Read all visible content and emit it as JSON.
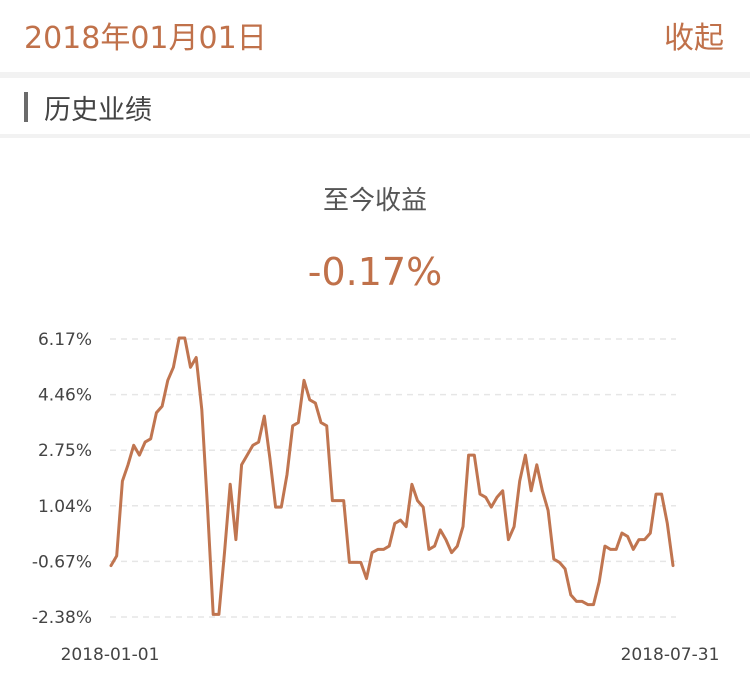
{
  "header": {
    "date": "2018年01月01日",
    "collapse_label": "收起"
  },
  "section": {
    "title": "历史业绩"
  },
  "summary": {
    "label": "至今收益",
    "value": "-0.17%"
  },
  "colors": {
    "accent": "#c0714a",
    "line": "#c07550",
    "grid": "#e6e6e6"
  },
  "chart_data": {
    "type": "line",
    "title": "",
    "xlabel": "",
    "ylabel": "",
    "x_ticks": [
      "2018-01-01",
      "2018-07-31"
    ],
    "y_ticks": [
      "6.17%",
      "4.46%",
      "2.75%",
      "1.04%",
      "-0.67%",
      "-2.38%"
    ],
    "y_tick_values": [
      6.17,
      4.46,
      2.75,
      1.04,
      -0.67,
      -2.38
    ],
    "ylim": [
      -2.38,
      6.17
    ],
    "grid": true,
    "series": [
      {
        "values": [
          -0.8,
          -0.5,
          1.8,
          2.3,
          2.9,
          2.6,
          3.0,
          3.1,
          3.9,
          4.1,
          4.9,
          5.3,
          6.2,
          6.2,
          5.3,
          5.6,
          4.0,
          1.0,
          -2.3,
          -2.3,
          -0.4,
          1.7,
          0.0,
          2.3,
          2.6,
          2.9,
          3.0,
          3.8,
          2.5,
          1.0,
          1.0,
          2.0,
          3.5,
          3.6,
          4.9,
          4.3,
          4.2,
          3.6,
          3.5,
          1.2,
          1.2,
          1.2,
          -0.7,
          -0.7,
          -0.7,
          -1.2,
          -0.4,
          -0.3,
          -0.3,
          -0.2,
          0.5,
          0.6,
          0.4,
          1.7,
          1.2,
          1.0,
          -0.3,
          -0.2,
          0.3,
          0.0,
          -0.4,
          -0.2,
          0.4,
          2.6,
          2.6,
          1.4,
          1.3,
          1.0,
          1.3,
          1.5,
          0.0,
          0.4,
          1.8,
          2.6,
          1.5,
          2.3,
          1.5,
          0.9,
          -0.6,
          -0.7,
          -0.9,
          -1.7,
          -1.9,
          -1.9,
          -2.0,
          -2.0,
          -1.3,
          -0.2,
          -0.3,
          -0.3,
          0.2,
          0.1,
          -0.3,
          0.0,
          0.0,
          0.2,
          1.4,
          1.4,
          0.5,
          -0.8
        ]
      }
    ]
  }
}
